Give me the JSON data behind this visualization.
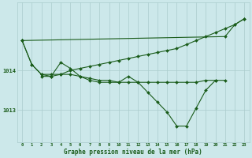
{
  "background_color": "#cce8ea",
  "grid_color": "#aacccc",
  "line_color": "#1a5c1a",
  "xlabel": "Graphe pression niveau de la mer (hPa)",
  "hours": [
    0,
    1,
    2,
    3,
    4,
    5,
    6,
    7,
    8,
    9,
    10,
    11,
    12,
    13,
    14,
    15,
    16,
    17,
    18,
    19,
    20,
    21,
    22,
    23
  ],
  "series_rising": [
    1014.75,
    1014.15,
    1013.9,
    1013.9,
    1013.9,
    1014.0,
    1014.05,
    1014.1,
    1014.15,
    1014.2,
    1014.25,
    1014.3,
    1014.35,
    1014.4,
    1014.45,
    1014.5,
    1014.55,
    1014.65,
    1014.75,
    1014.85,
    1014.95,
    1015.05,
    1015.15,
    1015.3
  ],
  "series_flat": [
    null,
    null,
    1013.85,
    1013.85,
    1013.9,
    1013.9,
    1013.85,
    1013.8,
    1013.75,
    1013.75,
    1013.7,
    1013.7,
    1013.7,
    1013.7,
    1013.7,
    1013.7,
    1013.7,
    1013.7,
    1013.7,
    1013.75,
    1013.75,
    null,
    null,
    null
  ],
  "series_dip": [
    1014.75,
    1014.15,
    1013.9,
    1013.85,
    1014.2,
    1014.05,
    1013.85,
    1013.75,
    1013.7,
    1013.7,
    1013.7,
    1013.85,
    1013.7,
    1013.45,
    1013.2,
    1012.95,
    1012.6,
    1012.6,
    1013.05,
    1013.5,
    1013.75,
    1013.75,
    null,
    null
  ],
  "series_upper": [
    1014.75,
    null,
    null,
    null,
    null,
    null,
    null,
    null,
    null,
    null,
    null,
    null,
    null,
    null,
    null,
    null,
    null,
    null,
    null,
    null,
    null,
    1014.85,
    1015.15,
    1015.3
  ],
  "yticks": [
    1013,
    1014
  ],
  "ylim": [
    1012.2,
    1015.7
  ],
  "xlim": [
    -0.5,
    23.5
  ]
}
